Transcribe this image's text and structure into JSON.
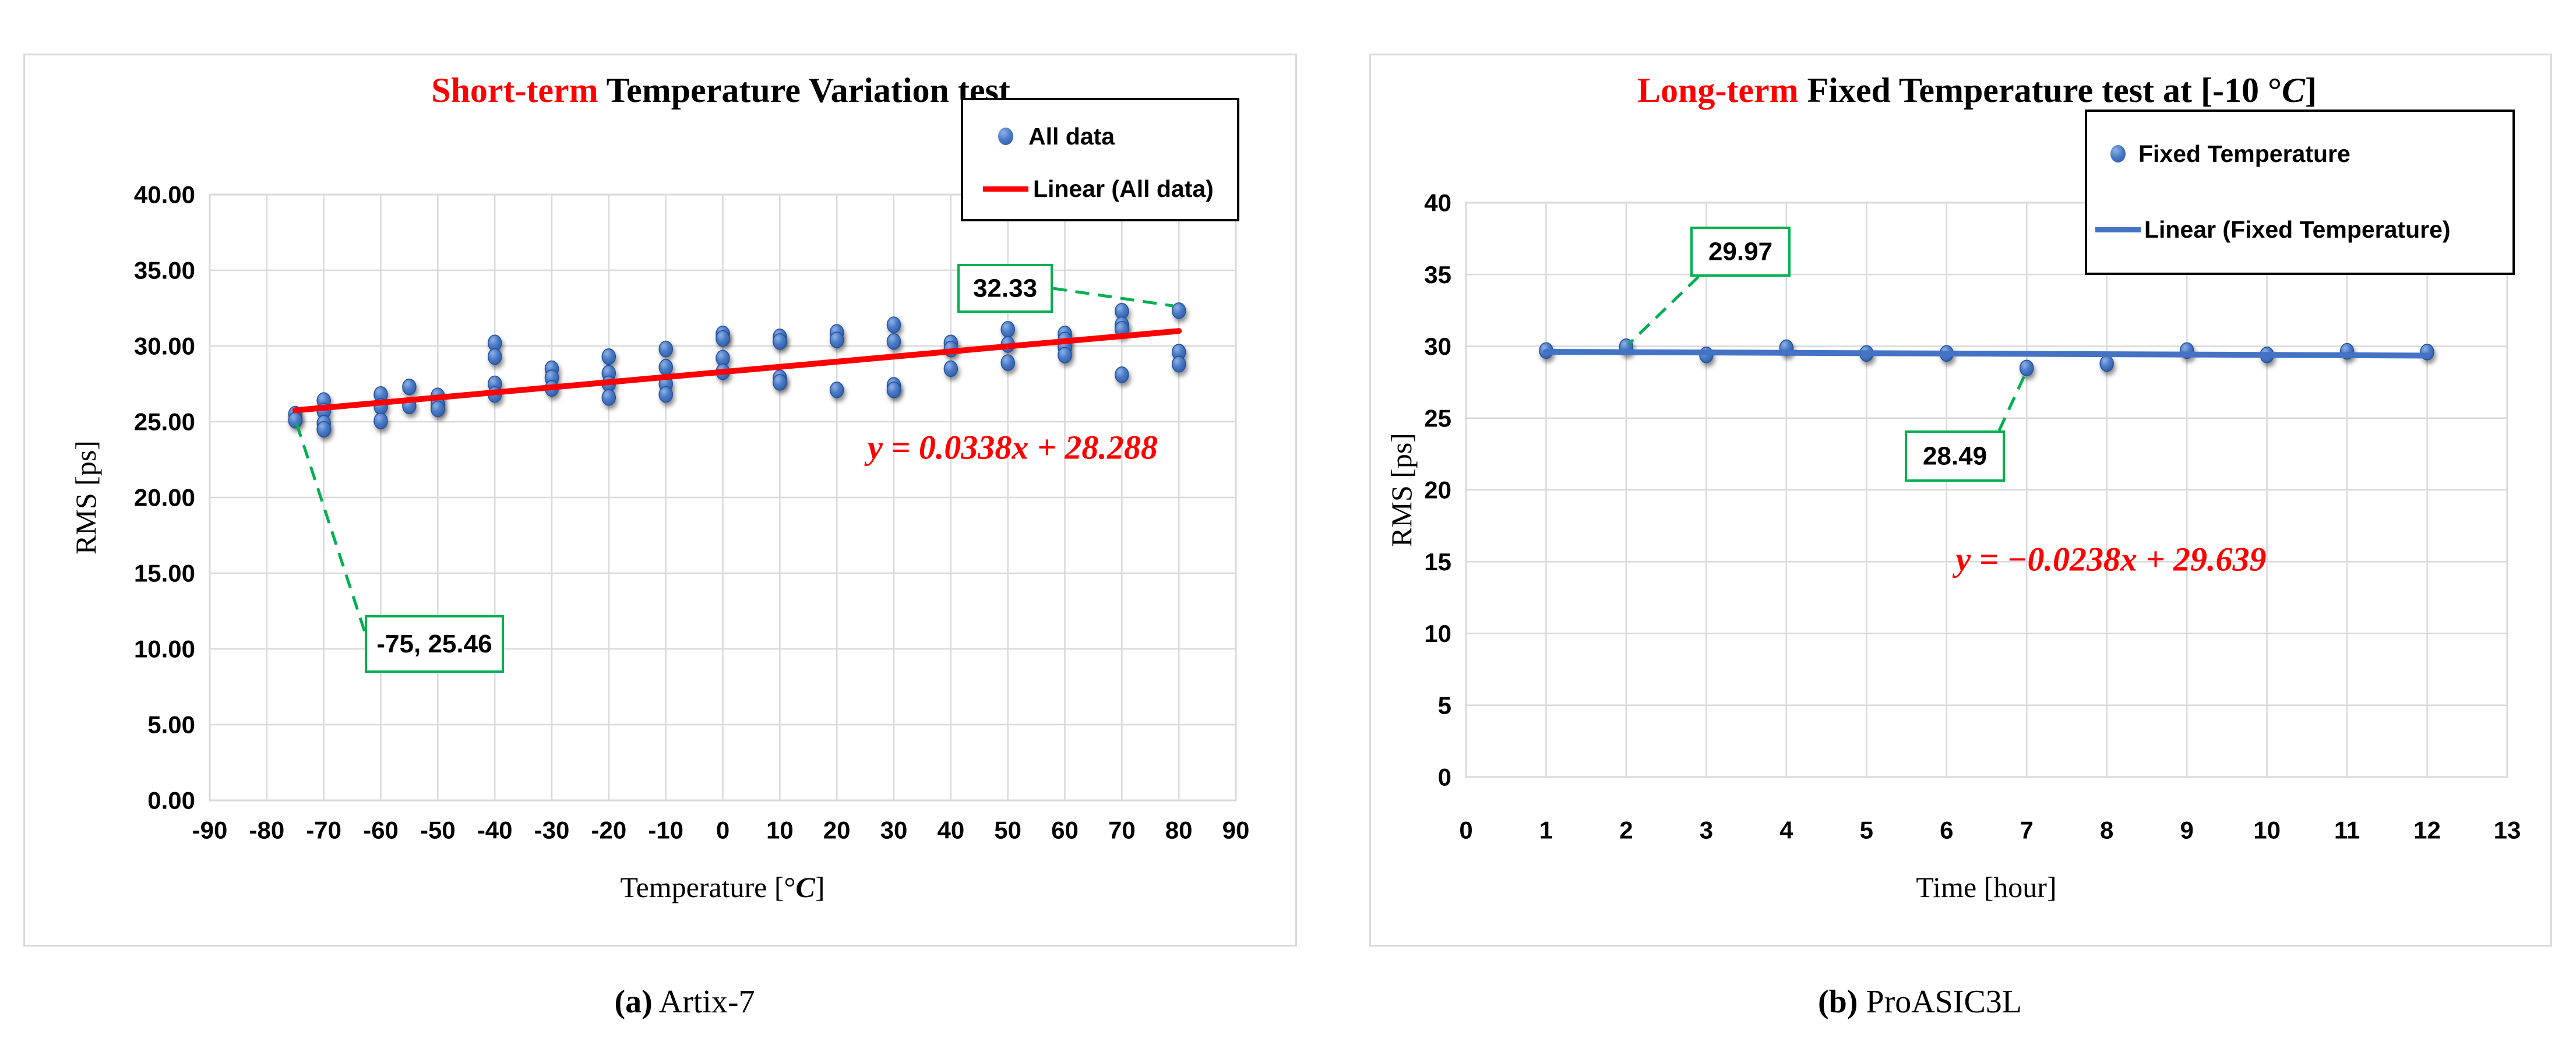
{
  "colors": {
    "accent_red": "#ff0000",
    "dot_fill": "#3a6fc8",
    "dot_edge": "#24509a",
    "trend_left": "#ff0000",
    "trend_right": "#4472c4",
    "annotation_green": "#00b050",
    "gridline": "#d9d9d9",
    "panel_border": "#d9d9d9"
  },
  "captions": {
    "a": {
      "label": "(a)",
      "text": " Artix-7"
    },
    "b": {
      "label": "(b)",
      "text": " ProASIC3L"
    }
  },
  "chart_data": [
    {
      "type": "scatter",
      "title": {
        "accent": "Short-term",
        "rest": " Temperature Variation test",
        "italic": "",
        "post": ""
      },
      "xlabel": {
        "pre": "Temperature [°",
        "italic": "C",
        "post": "]"
      },
      "ylabel": "RMS [ps]",
      "xlim": [
        -90,
        90
      ],
      "ylim": [
        0,
        40
      ],
      "xticks": [
        -90,
        -80,
        -70,
        -60,
        -50,
        -40,
        -30,
        -20,
        -10,
        0,
        10,
        20,
        30,
        40,
        50,
        60,
        70,
        80,
        90
      ],
      "xtick_labels": [
        "-90",
        "-80",
        "-70",
        "-60",
        "-50",
        "-40",
        "-30",
        "-20",
        "-10",
        "0",
        "10",
        "20",
        "30",
        "40",
        "50",
        "60",
        "70",
        "80",
        "90"
      ],
      "ytick_labels": [
        "40.00",
        "35.00",
        "30.00",
        "25.00",
        "20.00",
        "15.00",
        "10.00",
        "5.00",
        "0.00"
      ],
      "grid": true,
      "legend": {
        "position": "top-right",
        "items": [
          {
            "label": "All data",
            "marker": "dot",
            "color": "#3a6fc8"
          },
          {
            "label": "Linear (All data)",
            "marker": "line",
            "color": "#ff0000"
          }
        ]
      },
      "series": [
        {
          "name": "All data",
          "color": "#3a6fc8",
          "points": [
            [
              -75,
              25.5
            ],
            [
              -75,
              25.1
            ],
            [
              -70,
              26.4
            ],
            [
              -70,
              25.7
            ],
            [
              -70,
              24.9
            ],
            [
              -70,
              24.5
            ],
            [
              -60,
              26.8
            ],
            [
              -60,
              26.0
            ],
            [
              -60,
              25.05
            ],
            [
              -55,
              27.3
            ],
            [
              -55,
              26.05
            ],
            [
              -50,
              26.7
            ],
            [
              -50,
              26.15
            ],
            [
              -50,
              25.85
            ],
            [
              -40,
              30.2
            ],
            [
              -40,
              29.3
            ],
            [
              -40,
              27.5
            ],
            [
              -40,
              26.8
            ],
            [
              -30,
              28.5
            ],
            [
              -30,
              27.9
            ],
            [
              -30,
              27.2
            ],
            [
              -20,
              29.3
            ],
            [
              -20,
              28.2
            ],
            [
              -20,
              27.5
            ],
            [
              -20,
              26.6
            ],
            [
              -10,
              29.8
            ],
            [
              -10,
              28.6
            ],
            [
              -10,
              27.5
            ],
            [
              -10,
              26.8
            ],
            [
              0,
              30.8
            ],
            [
              0,
              30.5
            ],
            [
              0,
              29.2
            ],
            [
              0,
              28.3
            ],
            [
              10,
              30.6
            ],
            [
              10,
              30.3
            ],
            [
              10,
              27.9
            ],
            [
              10,
              27.6
            ],
            [
              20,
              30.9
            ],
            [
              20,
              30.4
            ],
            [
              20,
              27.1
            ],
            [
              30,
              31.4
            ],
            [
              30,
              30.3
            ],
            [
              30,
              27.4
            ],
            [
              30,
              27.1
            ],
            [
              40,
              30.2
            ],
            [
              40,
              29.8
            ],
            [
              40,
              28.5
            ],
            [
              50,
              31.1
            ],
            [
              50,
              30.1
            ],
            [
              50,
              28.9
            ],
            [
              60,
              30.8
            ],
            [
              60,
              30.4
            ],
            [
              60,
              29.9
            ],
            [
              60,
              29.4
            ],
            [
              70,
              32.3
            ],
            [
              70,
              31.4
            ],
            [
              70,
              31.1
            ],
            [
              70,
              28.1
            ],
            [
              80,
              32.33
            ],
            [
              80,
              29.6
            ],
            [
              80,
              28.8
            ]
          ]
        }
      ],
      "trendline": {
        "name": "Linear (All data)",
        "equation": "y = 0.0338x + 28.288",
        "slope": 0.0338,
        "intercept": 28.288,
        "x_range": [
          -75,
          80
        ],
        "color": "#ff0000"
      },
      "annotations": [
        {
          "text": "-75, 25.46",
          "point": [
            -75,
            25.46
          ]
        },
        {
          "text": "32.33",
          "point": [
            80,
            32.33
          ]
        }
      ]
    },
    {
      "type": "scatter",
      "title": {
        "accent": "Long-term",
        "rest": " Fixed Temperature test at [-10 °",
        "italic": "C",
        "post": "]"
      },
      "xlabel": {
        "pre": "Time [hour]",
        "italic": "",
        "post": ""
      },
      "ylabel": "RMS [ps]",
      "xlim": [
        0,
        13
      ],
      "ylim": [
        0,
        40
      ],
      "xticks": [
        0,
        1,
        2,
        3,
        4,
        5,
        6,
        7,
        8,
        9,
        10,
        11,
        12,
        13
      ],
      "xtick_labels": [
        "0",
        "1",
        "2",
        "3",
        "4",
        "5",
        "6",
        "7",
        "8",
        "9",
        "10",
        "11",
        "12",
        "13"
      ],
      "ytick_labels": [
        "40",
        "35",
        "30",
        "25",
        "20",
        "15",
        "10",
        "5",
        "0"
      ],
      "grid": true,
      "legend": {
        "position": "top-right",
        "items": [
          {
            "label": "Fixed Temperature",
            "marker": "dot",
            "color": "#3a6fc8"
          },
          {
            "label": "Linear (Fixed Temperature)",
            "marker": "line",
            "color": "#4472c4"
          }
        ]
      },
      "series": [
        {
          "name": "Fixed Temperature",
          "color": "#3a6fc8",
          "points": [
            [
              1,
              29.7
            ],
            [
              2,
              29.97
            ],
            [
              3,
              29.4
            ],
            [
              4,
              29.9
            ],
            [
              5,
              29.5
            ],
            [
              6,
              29.5
            ],
            [
              7,
              28.49
            ],
            [
              8,
              28.8
            ],
            [
              9,
              29.7
            ],
            [
              10,
              29.4
            ],
            [
              11,
              29.65
            ],
            [
              12,
              29.6
            ]
          ]
        }
      ],
      "trendline": {
        "name": "Linear (Fixed Temperature)",
        "equation": "y = −0.0238x + 29.639",
        "slope": -0.0238,
        "intercept": 29.639,
        "x_range": [
          1,
          12
        ],
        "color": "#4472c4"
      },
      "annotations": [
        {
          "text": "29.97",
          "point": [
            2,
            29.97
          ]
        },
        {
          "text": "28.49",
          "point": [
            7,
            28.49
          ]
        }
      ]
    }
  ]
}
